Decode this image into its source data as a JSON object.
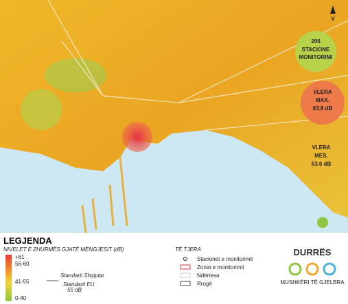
{
  "map": {
    "north": "V",
    "stations": {
      "count": "206",
      "label": "STACIONE",
      "label2": "MONITORIMI"
    },
    "max": {
      "label": "VLERA",
      "label2": "MAX.",
      "value": "63.8 dB"
    },
    "mean": {
      "label": "VLERA",
      "label2": "MES.",
      "value": "53.6 dB"
    }
  },
  "legend": {
    "title": "LEGJENDA",
    "subtitle": "NIVELET E ZHURMËS GJATË MËNGJESIT (dB)",
    "levels": [
      "+61",
      "56-60",
      "41-55",
      "0-40"
    ],
    "standard": [
      "Standarti Shqiptar",
      "Standarti EU",
      "55 dB"
    ],
    "other_title": "TË TJERA",
    "other": [
      "Stacionet e monitorimit",
      "Zonat e monitorimit",
      "Ndërtesa",
      "Rrugë"
    ]
  },
  "brand": {
    "city": "DURRËS",
    "slogan": "MUSHKËRI TË GJELBRA"
  }
}
